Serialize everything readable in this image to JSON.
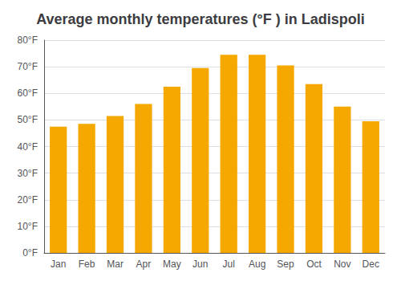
{
  "chart_data": {
    "type": "bar",
    "title": "Average monthly temperatures (°F ) in Ladispoli",
    "categories": [
      "Jan",
      "Feb",
      "Mar",
      "Apr",
      "May",
      "Jun",
      "Jul",
      "Aug",
      "Sep",
      "Oct",
      "Nov",
      "Dec"
    ],
    "values": [
      47.5,
      48.5,
      51.5,
      56.0,
      62.5,
      69.5,
      74.5,
      74.5,
      70.5,
      63.5,
      55.0,
      49.5
    ],
    "color": "#F5A800",
    "ylim": [
      0,
      80
    ],
    "yticks": [
      {
        "value": 0,
        "label": "0°F"
      },
      {
        "value": 10,
        "label": "10°F"
      },
      {
        "value": 20,
        "label": "20°F"
      },
      {
        "value": 30,
        "label": "30°F"
      },
      {
        "value": 40,
        "label": "40°F"
      },
      {
        "value": 50,
        "label": "50°F"
      },
      {
        "value": 60,
        "label": "60°F"
      },
      {
        "value": 70,
        "label": "70°F"
      },
      {
        "value": 80,
        "label": "80°F"
      }
    ],
    "grid": true
  }
}
